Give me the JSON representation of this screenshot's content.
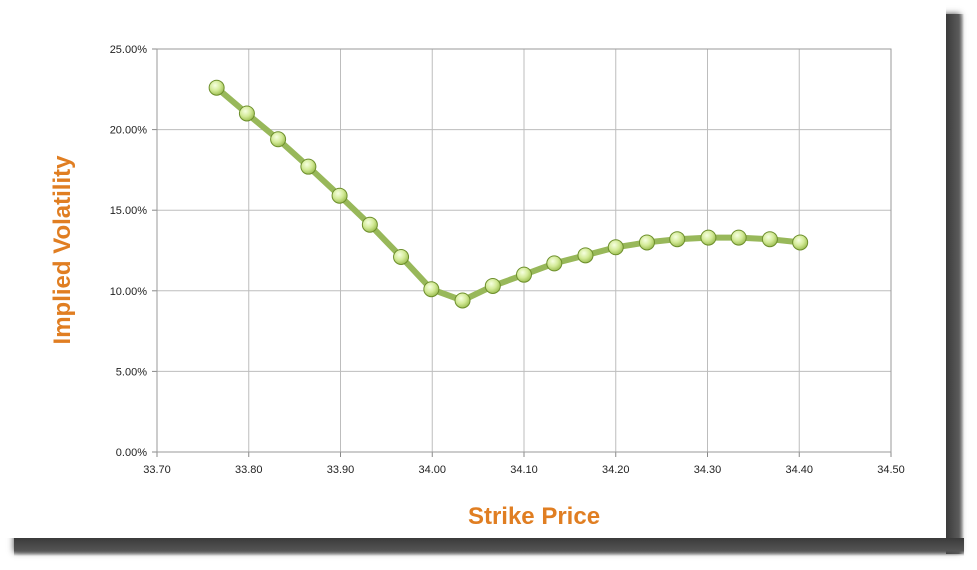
{
  "chart_data": {
    "type": "line",
    "xlabel": "Strike Price",
    "ylabel": "Implied Volatility",
    "xlim": [
      33.7,
      34.5
    ],
    "ylim": [
      0,
      0.25
    ],
    "x_ticks": [
      "33.70",
      "33.80",
      "33.90",
      "34.00",
      "34.10",
      "34.20",
      "34.30",
      "34.40",
      "34.50"
    ],
    "y_ticks": [
      "0.00%",
      "5.00%",
      "10.00%",
      "15.00%",
      "20.00%",
      "25.00%"
    ],
    "grid": true,
    "legend": "none",
    "colors": {
      "line": "#98b85a",
      "marker_fill": "#d9efa0",
      "marker_stroke": "#6d8f2c",
      "axis_title": "#e07e22",
      "grid": "#bdbdbd"
    },
    "series": [
      {
        "x": [
          33.765,
          33.798,
          33.832,
          33.865,
          33.899,
          33.932,
          33.966,
          33.999,
          34.033,
          34.066,
          34.1,
          34.133,
          34.167,
          34.2,
          34.234,
          34.267,
          34.301,
          34.334,
          34.368,
          34.401
        ],
        "y": [
          0.226,
          0.21,
          0.194,
          0.177,
          0.159,
          0.141,
          0.121,
          0.101,
          0.094,
          0.103,
          0.11,
          0.117,
          0.122,
          0.127,
          0.13,
          0.132,
          0.133,
          0.133,
          0.132,
          0.13
        ]
      }
    ]
  }
}
